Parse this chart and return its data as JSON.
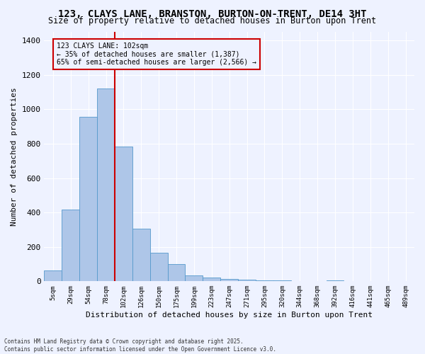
{
  "title1": "123, CLAYS LANE, BRANSTON, BURTON-ON-TRENT, DE14 3HT",
  "title2": "Size of property relative to detached houses in Burton upon Trent",
  "xlabel": "Distribution of detached houses by size in Burton upon Trent",
  "ylabel": "Number of detached properties",
  "bar_labels": [
    "5sqm",
    "29sqm",
    "54sqm",
    "78sqm",
    "102sqm",
    "126sqm",
    "150sqm",
    "175sqm",
    "199sqm",
    "223sqm",
    "247sqm",
    "271sqm",
    "295sqm",
    "320sqm",
    "344sqm",
    "368sqm",
    "392sqm",
    "416sqm",
    "441sqm",
    "465sqm",
    "489sqm"
  ],
  "bar_values": [
    65,
    415,
    955,
    1120,
    785,
    305,
    165,
    100,
    35,
    20,
    15,
    10,
    5,
    5,
    0,
    0,
    5,
    0,
    0,
    0,
    0
  ],
  "bar_color": "#aec6e8",
  "bar_edgecolor": "#5599cc",
  "vline_index": 4,
  "vline_color": "#cc0000",
  "annotation_title": "123 CLAYS LANE: 102sqm",
  "annotation_line1": "← 35% of detached houses are smaller (1,387)",
  "annotation_line2": "65% of semi-detached houses are larger (2,566) →",
  "annotation_box_color": "#cc0000",
  "ylim": [
    0,
    1450
  ],
  "yticks": [
    0,
    200,
    400,
    600,
    800,
    1000,
    1200,
    1400
  ],
  "footer1": "Contains HM Land Registry data © Crown copyright and database right 2025.",
  "footer2": "Contains public sector information licensed under the Open Government Licence v3.0.",
  "bg_color": "#eef2ff",
  "grid_color": "#ffffff"
}
